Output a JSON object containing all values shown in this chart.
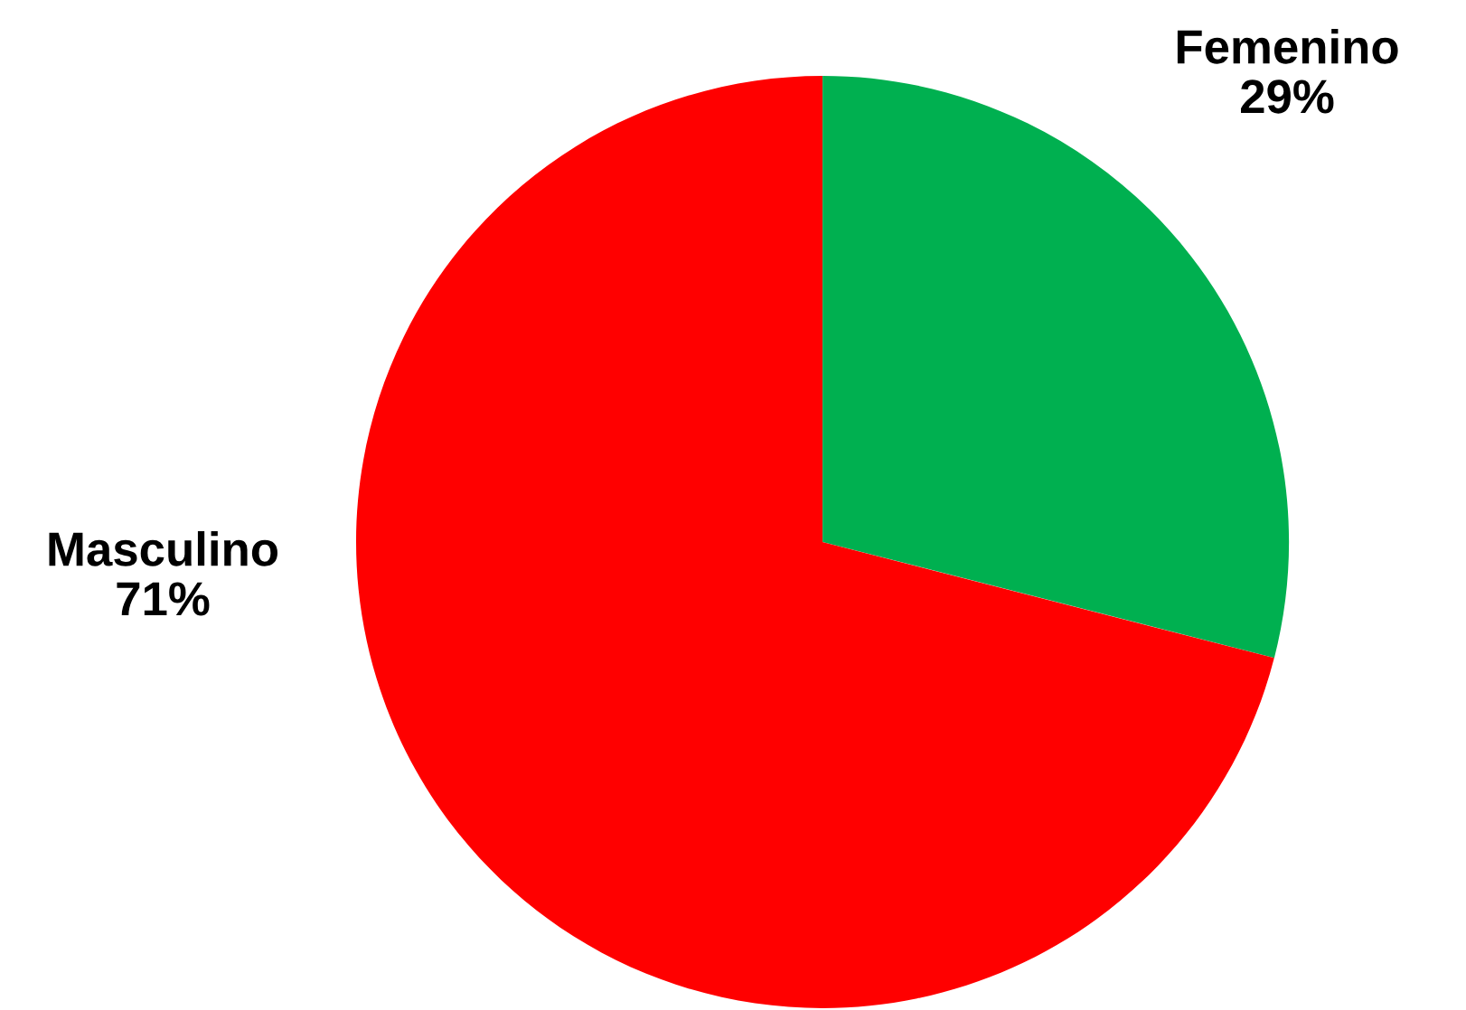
{
  "chart_data": {
    "type": "pie",
    "categories": [
      "Femenino",
      "Masculino"
    ],
    "values": [
      29,
      71
    ],
    "value_labels": [
      "29%",
      "71%"
    ],
    "colors": [
      "#00b050",
      "#ff0000"
    ],
    "legend": false
  }
}
